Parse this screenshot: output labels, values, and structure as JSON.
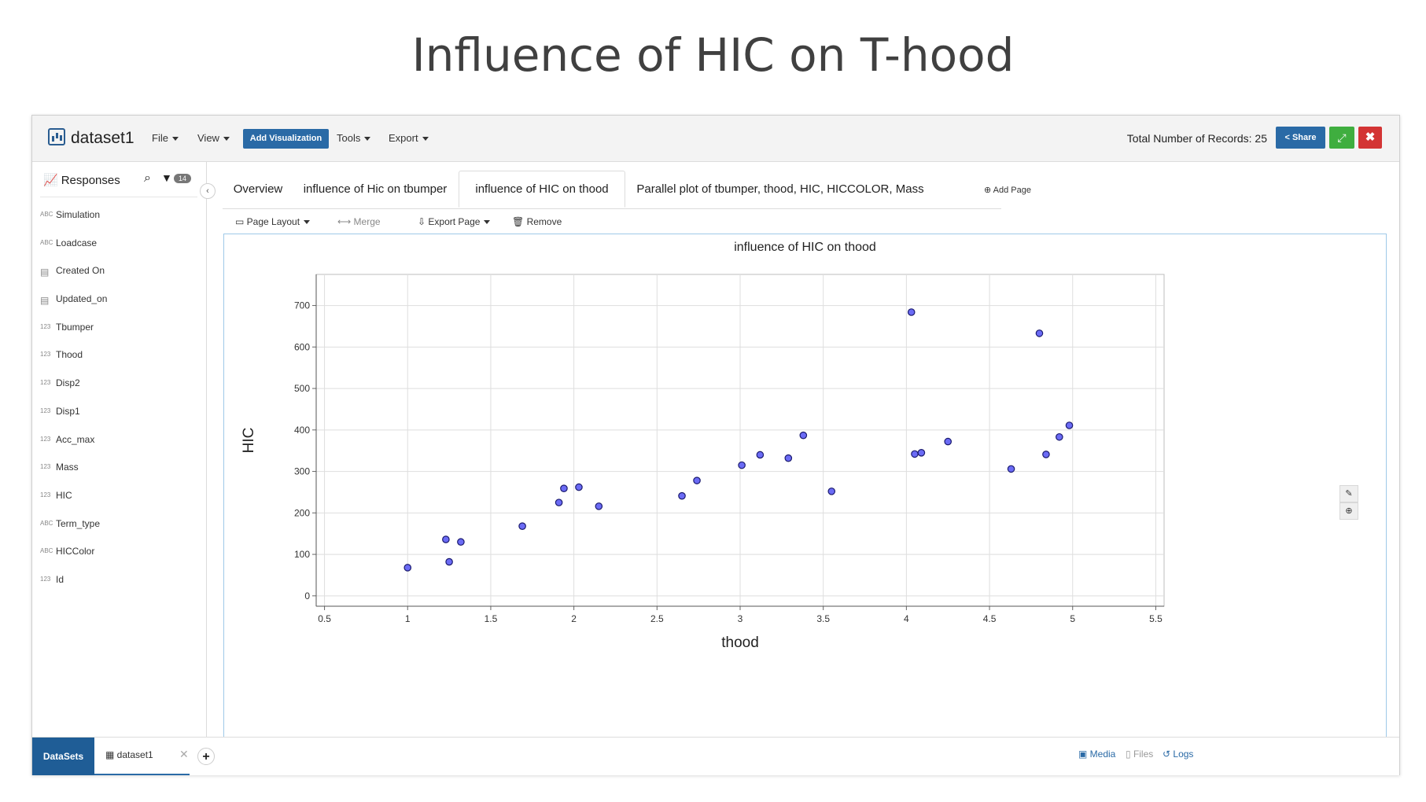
{
  "slide_title": "Influence of HIC on T-hood",
  "app": {
    "dataset_name": "dataset1",
    "menus": [
      "File",
      "View",
      "Tools",
      "Export"
    ],
    "add_visualization": "Add Visualization",
    "records_label": "Total Number of Records: 25",
    "share_label": "Share",
    "colors": {
      "primary": "#2a6aa6",
      "success": "#3fae3f",
      "danger": "#d33434",
      "point": "#5b5bf0"
    }
  },
  "sidebar": {
    "title": "Responses",
    "badge": "14",
    "items": [
      {
        "type": "ABC",
        "label": "Simulation"
      },
      {
        "type": "ABC",
        "label": "Loadcase"
      },
      {
        "type": "table-icon",
        "label": "Created On"
      },
      {
        "type": "table-icon",
        "label": "Updated_on"
      },
      {
        "type": "123",
        "label": "Tbumper"
      },
      {
        "type": "123",
        "label": "Thood"
      },
      {
        "type": "123",
        "label": "Disp2"
      },
      {
        "type": "123",
        "label": "Disp1"
      },
      {
        "type": "123",
        "label": "Acc_max"
      },
      {
        "type": "123",
        "label": "Mass"
      },
      {
        "type": "123",
        "label": "HIC"
      },
      {
        "type": "ABC",
        "label": "Term_type"
      },
      {
        "type": "ABC",
        "label": "HICColor"
      },
      {
        "type": "123",
        "label": "Id"
      }
    ]
  },
  "tabs": [
    {
      "label": "Overview",
      "active": false
    },
    {
      "label": "influence of Hic on tbumper",
      "active": false
    },
    {
      "label": "influence of HIC on thood",
      "active": true
    },
    {
      "label": "Parallel plot of tbumper, thood, HIC, HICCOLOR, Mass",
      "active": false
    }
  ],
  "add_page": "Add Page",
  "toolbar": {
    "page_layout": "Page Layout",
    "merge": "Merge",
    "export_page": "Export Page",
    "remove": "Remove"
  },
  "chart_data": {
    "type": "scatter",
    "title": "influence of HIC on thood",
    "xlabel": "thood",
    "ylabel": "HIC",
    "xlim": [
      0.45,
      5.55
    ],
    "ylim": [
      -25,
      775
    ],
    "x_ticks": [
      "0.5",
      "1",
      "1.5",
      "2",
      "2.5",
      "3",
      "3.5",
      "4",
      "4.5",
      "5",
      "5.5"
    ],
    "y_ticks": [
      "0",
      "100",
      "200",
      "300",
      "400",
      "500",
      "600",
      "700"
    ],
    "grid": true,
    "points": [
      {
        "x": 1.0,
        "y": 68
      },
      {
        "x": 1.23,
        "y": 136
      },
      {
        "x": 1.25,
        "y": 82
      },
      {
        "x": 1.32,
        "y": 130
      },
      {
        "x": 1.69,
        "y": 168
      },
      {
        "x": 1.91,
        "y": 225
      },
      {
        "x": 1.94,
        "y": 259
      },
      {
        "x": 2.03,
        "y": 262
      },
      {
        "x": 2.15,
        "y": 216
      },
      {
        "x": 2.65,
        "y": 241
      },
      {
        "x": 2.74,
        "y": 278
      },
      {
        "x": 3.01,
        "y": 315
      },
      {
        "x": 3.12,
        "y": 340
      },
      {
        "x": 3.29,
        "y": 332
      },
      {
        "x": 3.38,
        "y": 387
      },
      {
        "x": 3.55,
        "y": 252
      },
      {
        "x": 4.03,
        "y": 684
      },
      {
        "x": 4.05,
        "y": 342
      },
      {
        "x": 4.09,
        "y": 345
      },
      {
        "x": 4.25,
        "y": 372
      },
      {
        "x": 4.63,
        "y": 306
      },
      {
        "x": 4.8,
        "y": 633
      },
      {
        "x": 4.84,
        "y": 341
      },
      {
        "x": 4.92,
        "y": 383
      },
      {
        "x": 4.98,
        "y": 411
      }
    ]
  },
  "bottom": {
    "datasets_label": "DataSets",
    "tab_label": "dataset1",
    "media": "Media",
    "files": "Files",
    "logs": "Logs"
  }
}
